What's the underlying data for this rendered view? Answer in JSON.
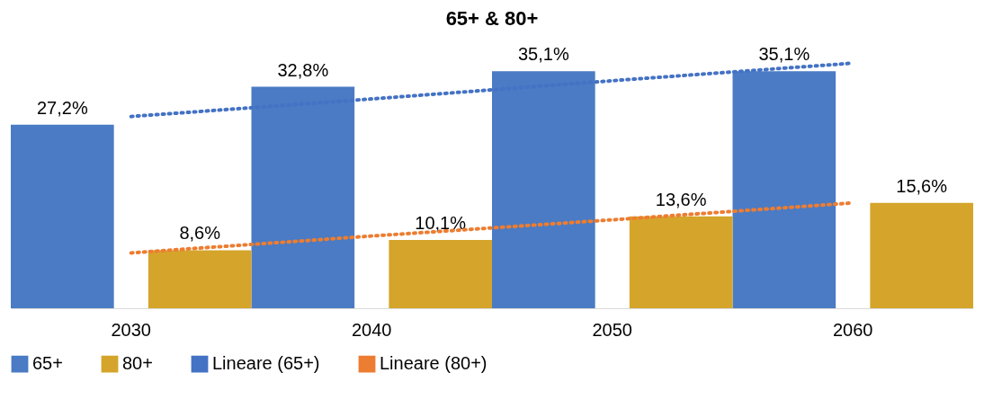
{
  "chart_data": {
    "type": "bar",
    "title": "65+ & 80+",
    "categories": [
      "2030",
      "2040",
      "2050",
      "2060"
    ],
    "series": [
      {
        "name": "65+",
        "color": "#4a7bc4",
        "values": [
          27.2,
          32.8,
          35.1,
          35.1
        ],
        "value_labels": [
          "27,2%",
          "32,8%",
          "35,1%",
          "35,1%"
        ]
      },
      {
        "name": "80+",
        "color": "#d4a52a",
        "values": [
          8.6,
          10.1,
          13.6,
          15.6
        ],
        "value_labels": [
          "8,6%",
          "10,1%",
          "13,6%",
          "15,6%"
        ]
      },
      {
        "name": "Lineare (65+)",
        "type": "line",
        "color": "#4472c4",
        "line_style": "dotted",
        "values": [
          28.4,
          31.0,
          33.7,
          36.3
        ]
      },
      {
        "name": "Lineare (80+)",
        "type": "line",
        "color": "#ed7d31",
        "line_style": "dotted",
        "values": [
          8.2,
          10.7,
          13.1,
          15.6
        ]
      }
    ],
    "legend": "bottom"
  }
}
